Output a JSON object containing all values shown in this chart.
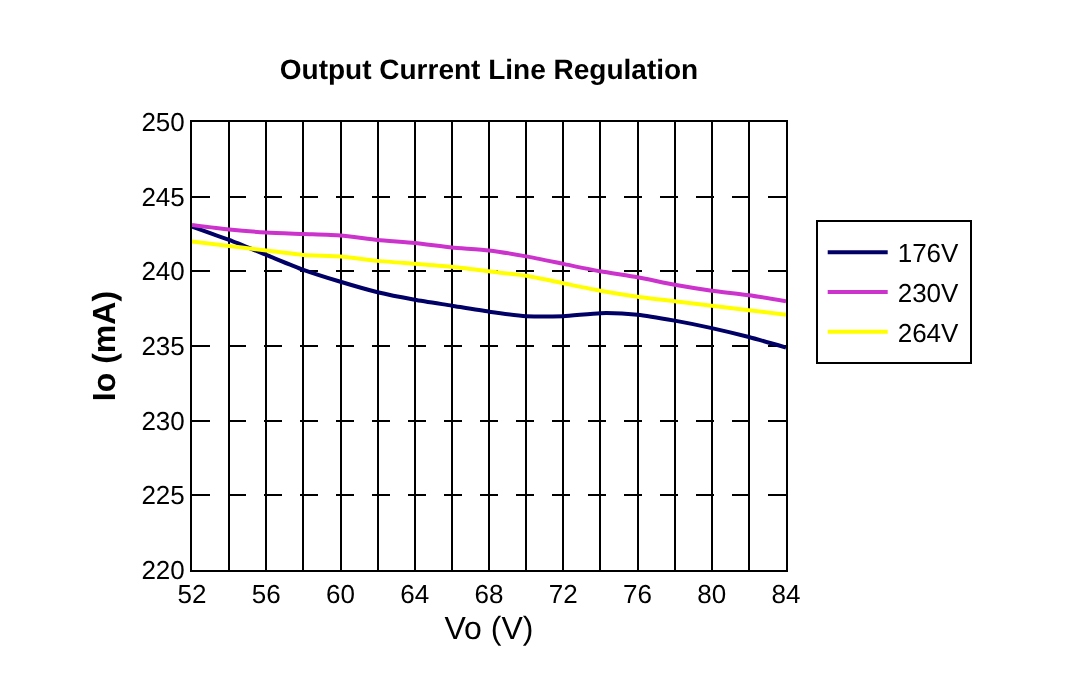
{
  "chart_data": {
    "type": "line",
    "title": "Output Current Line Regulation",
    "xlabel": "Vo (V)",
    "ylabel": "Io (mA)",
    "x": [
      52,
      54,
      56,
      58,
      60,
      62,
      64,
      66,
      68,
      70,
      72,
      74,
      76,
      78,
      80,
      82,
      84
    ],
    "series": [
      {
        "name": "176V",
        "color": "#000066",
        "values": [
          243.0,
          242.1,
          241.1,
          240.1,
          239.3,
          238.6,
          238.1,
          237.7,
          237.3,
          237.0,
          237.0,
          237.2,
          237.1,
          236.7,
          236.2,
          235.6,
          234.9
        ]
      },
      {
        "name": "230V",
        "color": "#cc33cc",
        "values": [
          243.1,
          242.8,
          242.6,
          242.5,
          242.4,
          242.1,
          241.9,
          241.6,
          241.4,
          241.0,
          240.5,
          240.0,
          239.6,
          239.1,
          238.7,
          238.4,
          238.0
        ]
      },
      {
        "name": "264V",
        "color": "#ffff00",
        "values": [
          242.0,
          241.7,
          241.4,
          241.1,
          241.0,
          240.7,
          240.5,
          240.3,
          240.0,
          239.7,
          239.2,
          238.7,
          238.3,
          238.0,
          237.7,
          237.4,
          237.1
        ]
      }
    ],
    "xlim": [
      52,
      84
    ],
    "xticks": [
      52,
      56,
      60,
      64,
      68,
      72,
      76,
      80,
      84,
      {
        "value": 54,
        "label": null
      },
      {
        "value": 58,
        "label": null
      },
      {
        "value": 62,
        "label": null
      },
      {
        "value": 66,
        "label": null
      },
      {
        "value": 70,
        "label": null
      },
      {
        "value": 74,
        "label": null
      },
      {
        "value": 78,
        "label": null
      },
      {
        "value": 82,
        "label": null
      }
    ],
    "ylim": [
      220,
      250
    ],
    "yticks": [
      220,
      225,
      230,
      235,
      240,
      245,
      250
    ],
    "grid": true,
    "legend": "right",
    "marker": "none",
    "line_style": "solid"
  }
}
